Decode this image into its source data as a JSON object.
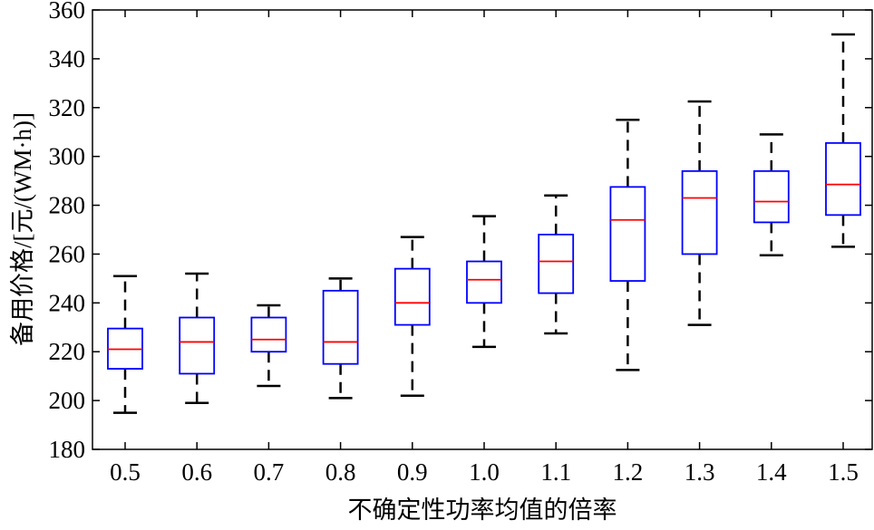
{
  "chart_data": {
    "type": "box",
    "title": "",
    "xlabel": "不确定性功率均值的倍率",
    "ylabel": "备用价格/[元/(WM·h)]",
    "ylim": [
      180,
      360
    ],
    "yticks": [
      180,
      200,
      220,
      240,
      260,
      280,
      300,
      320,
      340,
      360
    ],
    "categories": [
      "0.5",
      "0.6",
      "0.7",
      "0.8",
      "0.9",
      "1.0",
      "1.1",
      "1.2",
      "1.3",
      "1.4",
      "1.5"
    ],
    "boxes": [
      {
        "whisker_low": 195,
        "q1": 213,
        "median": 221,
        "q3": 229.5,
        "whisker_high": 251
      },
      {
        "whisker_low": 199,
        "q1": 211,
        "median": 224,
        "q3": 234,
        "whisker_high": 252
      },
      {
        "whisker_low": 206,
        "q1": 220,
        "median": 225,
        "q3": 234,
        "whisker_high": 239
      },
      {
        "whisker_low": 201,
        "q1": 215,
        "median": 224,
        "q3": 245,
        "whisker_high": 250
      },
      {
        "whisker_low": 202,
        "q1": 231,
        "median": 240,
        "q3": 254,
        "whisker_high": 267
      },
      {
        "whisker_low": 222,
        "q1": 240,
        "median": 249.5,
        "q3": 257,
        "whisker_high": 275.5
      },
      {
        "whisker_low": 227.5,
        "q1": 244,
        "median": 257,
        "q3": 268,
        "whisker_high": 284
      },
      {
        "whisker_low": 212.5,
        "q1": 249,
        "median": 274,
        "q3": 287.5,
        "whisker_high": 315
      },
      {
        "whisker_low": 231,
        "q1": 260,
        "median": 283,
        "q3": 294,
        "whisker_high": 322.5
      },
      {
        "whisker_low": 259.5,
        "q1": 273,
        "median": 281.5,
        "q3": 294,
        "whisker_high": 309
      },
      {
        "whisker_low": 263,
        "q1": 276,
        "median": 288.5,
        "q3": 305.5,
        "whisker_high": 350
      }
    ],
    "grid": false,
    "colors": {
      "box": "#0000ff",
      "median": "#ff0000",
      "whisker": "#000000"
    }
  }
}
